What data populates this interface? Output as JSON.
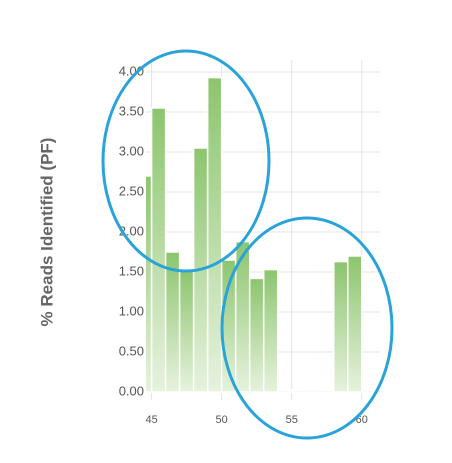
{
  "chart_data": {
    "type": "histogram",
    "ylabel": "% Reads Identified (PF)",
    "bins": [
      44,
      45,
      46,
      47,
      48,
      49,
      50,
      51,
      52,
      53,
      54,
      55,
      56,
      57,
      58,
      59,
      60,
      61
    ],
    "counts": [
      2.7,
      3.55,
      1.75,
      1.52,
      3.05,
      3.93,
      1.65,
      1.88,
      1.42,
      1.53,
      0.02,
      0.02,
      0.02,
      0.02,
      1.63,
      1.7,
      0.02
    ],
    "color": "#8cc56e",
    "xlim": [
      44.6,
      61.3
    ],
    "xticks": [
      45,
      50,
      55,
      60
    ],
    "ylim": [
      -0.1,
      4.15
    ],
    "yticks": [
      {
        "value": 0,
        "label": "0.00"
      },
      {
        "value": 0.5,
        "label": "0.50"
      },
      {
        "value": 1,
        "label": "1.00"
      },
      {
        "value": 1.5,
        "label": "1.50"
      },
      {
        "value": 2,
        "label": "2.00"
      },
      {
        "value": 2.5,
        "label": "2.50"
      },
      {
        "value": 3,
        "label": "3.00"
      },
      {
        "value": 3.5,
        "label": "3.50"
      },
      {
        "value": 4,
        "label": "4.00"
      }
    ],
    "grid": true
  }
}
